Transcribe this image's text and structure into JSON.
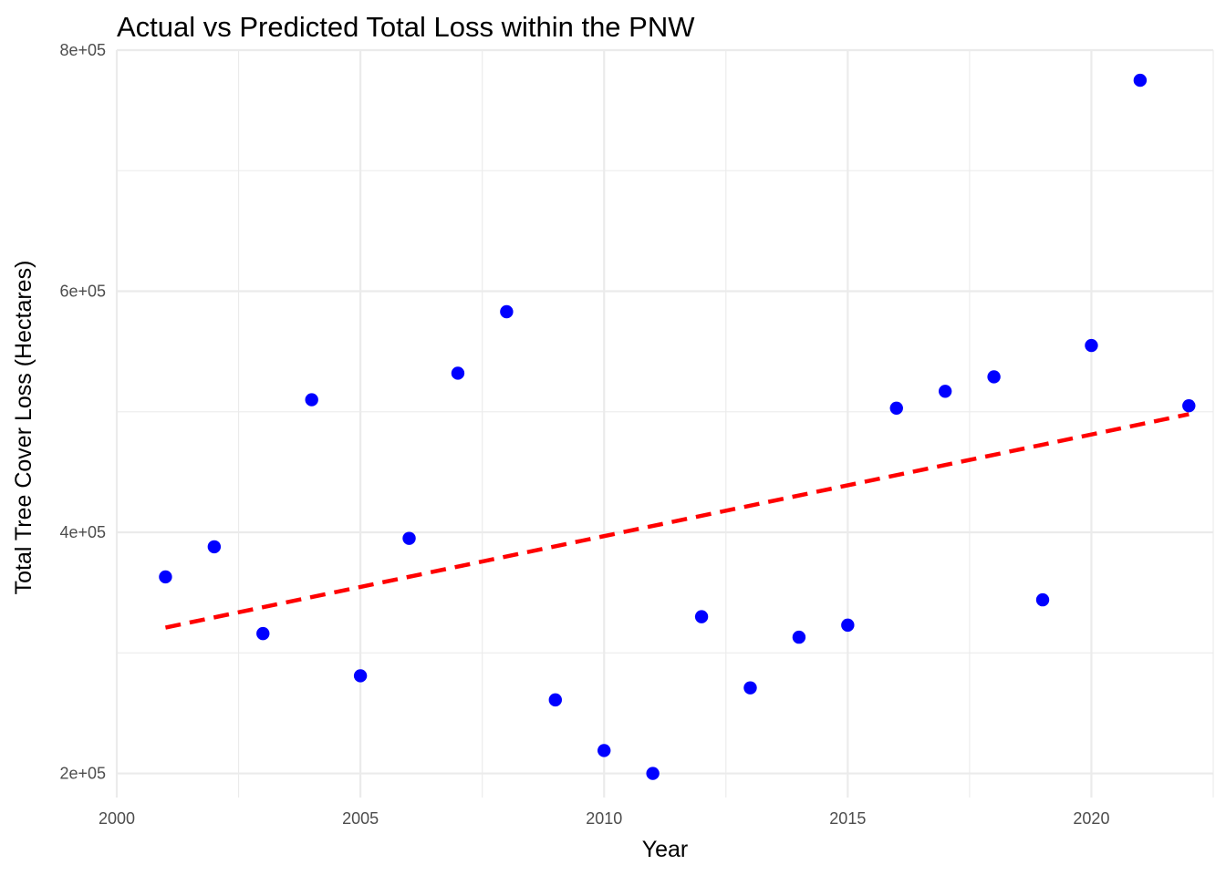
{
  "chart_data": {
    "type": "scatter",
    "title": "Actual vs Predicted Total Loss within the PNW",
    "xlabel": "Year",
    "ylabel": "Total Tree Cover Loss (Hectares)",
    "xlim": [
      2000,
      2022.5
    ],
    "ylim": [
      180000,
      800000
    ],
    "x_ticks": [
      2000,
      2005,
      2010,
      2015,
      2020
    ],
    "x_tick_labels": [
      "2000",
      "2005",
      "2010",
      "2015",
      "2020"
    ],
    "y_ticks": [
      200000,
      400000,
      600000,
      800000
    ],
    "y_tick_labels": [
      "2e+05",
      "4e+05",
      "6e+05",
      "8e+05"
    ],
    "grid": true,
    "series": [
      {
        "kind": "points",
        "color": "#0000ff",
        "x": [
          2001,
          2002,
          2003,
          2004,
          2005,
          2006,
          2007,
          2008,
          2009,
          2010,
          2011,
          2012,
          2013,
          2014,
          2015,
          2016,
          2017,
          2018,
          2019,
          2020,
          2021,
          2022
        ],
        "y": [
          363000,
          388000,
          316000,
          510000,
          281000,
          395000,
          532000,
          583000,
          261000,
          219000,
          200000,
          330000,
          271000,
          313000,
          323000,
          503000,
          517000,
          529000,
          344000,
          555000,
          775000,
          505000
        ]
      },
      {
        "kind": "trend-line",
        "color": "#ff0000",
        "line_style": "dashed",
        "x": [
          2001,
          2022
        ],
        "y": [
          321000,
          498000
        ]
      }
    ]
  }
}
